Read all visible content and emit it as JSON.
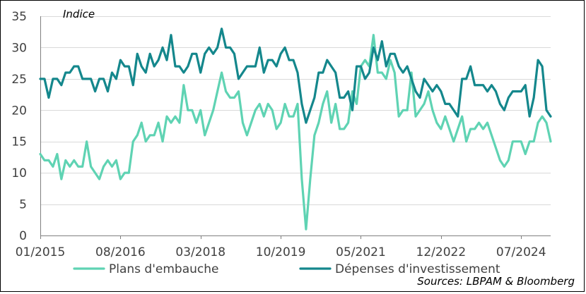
{
  "chart_data": {
    "type": "line",
    "unit_label": "Indice",
    "source": "Sources: LBPAM & Bloomberg",
    "ylim": [
      0,
      35
    ],
    "yticks": [
      "0",
      "5",
      "10",
      "15",
      "20",
      "25",
      "30",
      "35"
    ],
    "ytick_values": [
      0,
      5,
      10,
      15,
      20,
      25,
      30,
      35
    ],
    "xticks": [
      "01/2015",
      "08/2016",
      "03/2018",
      "10/2019",
      "05/2021",
      "12/2022",
      "07/2024"
    ],
    "xtick_index": [
      0,
      19,
      38,
      57,
      76,
      95,
      114
    ],
    "grid": "horizontal",
    "legend_position": "bottom",
    "series": [
      {
        "name": "Plans d'embauche",
        "color": "#5fd3b3",
        "values": [
          13,
          12,
          12,
          11,
          13,
          9,
          12,
          11,
          12,
          11,
          11,
          15,
          11,
          10,
          9,
          11,
          12,
          11,
          12,
          9,
          10,
          10,
          15,
          16,
          18,
          15,
          16,
          16,
          18,
          15,
          19,
          18,
          19,
          18,
          24,
          20,
          20,
          18,
          20,
          16,
          18,
          20,
          23,
          26,
          23,
          22,
          22,
          23,
          18,
          16,
          18,
          20,
          21,
          19,
          21,
          20,
          17,
          18,
          21,
          19,
          19,
          21,
          9,
          1,
          9,
          16,
          18,
          21,
          23,
          18,
          21,
          17,
          17,
          18,
          23,
          21,
          27,
          28,
          27,
          32,
          26,
          26,
          25,
          28,
          26,
          19,
          20,
          20,
          26,
          19,
          20,
          21,
          23,
          20,
          18,
          17,
          19,
          17,
          15,
          17,
          19,
          15,
          17,
          17,
          18,
          17,
          18,
          16,
          14,
          12,
          11,
          12,
          15,
          15,
          15,
          13,
          15,
          15,
          18,
          19,
          18,
          15
        ]
      },
      {
        "name": "Dépenses d'investissement",
        "color": "#14878c",
        "values": [
          25,
          25,
          22,
          25,
          25,
          24,
          26,
          26,
          27,
          27,
          25,
          25,
          25,
          23,
          25,
          25,
          23,
          26,
          25,
          28,
          27,
          27,
          24,
          29,
          27,
          26,
          29,
          27,
          28,
          30,
          28,
          32,
          27,
          27,
          26,
          27,
          29,
          29,
          26,
          29,
          30,
          29,
          30,
          33,
          30,
          30,
          29,
          25,
          26,
          27,
          27,
          27,
          30,
          26,
          28,
          28,
          27,
          29,
          30,
          28,
          28,
          26,
          21,
          18,
          20,
          22,
          26,
          26,
          28,
          27,
          26,
          22,
          22,
          23,
          20,
          27,
          27,
          25,
          26,
          30,
          28,
          31,
          27,
          29,
          29,
          27,
          26,
          27,
          25,
          23,
          22,
          25,
          24,
          23,
          24,
          23,
          21,
          21,
          20,
          19,
          25,
          25,
          27,
          24,
          24,
          24,
          23,
          24,
          23,
          21,
          20,
          22,
          23,
          23,
          23,
          24,
          19,
          22,
          28,
          27,
          20,
          19
        ]
      }
    ]
  }
}
